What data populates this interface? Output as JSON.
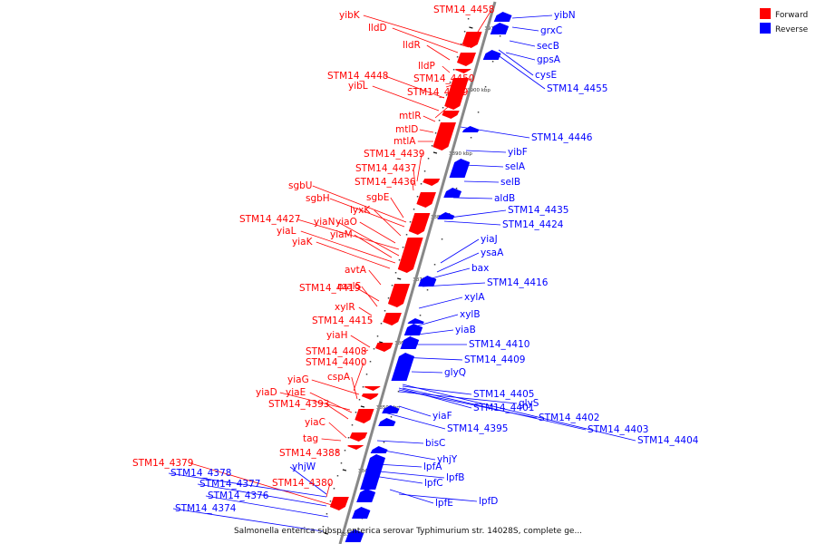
{
  "caption": "Salmonella enterica subsp. enterica serovar Typhimurium str. 14028S, complete ge...",
  "legend": [
    {
      "label": "Forward",
      "color": "#ff0000"
    },
    {
      "label": "Reverse",
      "color": "#0000ff"
    }
  ],
  "colors": {
    "forward": "#ff0000",
    "reverse": "#0000ff",
    "backbone": "#888888"
  },
  "ticks": [
    "3910 kbp",
    "3900 kbp",
    "3890 kbp",
    "3880 kbp",
    "3870 kbp",
    "3860 kbp",
    "3850 kbp",
    "3840 kbp",
    "3831 kbp"
  ],
  "forward_labels": [
    "yibK",
    "STM14_4458",
    "lldD",
    "lldR",
    "lldP",
    "STM14_4448",
    "STM14_4450",
    "yibL",
    "STM14_4449",
    "mtlR",
    "mtlD",
    "mtlA",
    "STM14_4439",
    "STM14_4437",
    "STM14_4436",
    "sgbU",
    "sgbH",
    "sgbE",
    "lyxK",
    "STM14_4427",
    "yiaN",
    "yiaO",
    "yiaL",
    "yiaM",
    "yiaK",
    "avtA",
    "STM14_4419",
    "malS",
    "xylR",
    "STM14_4415",
    "yiaH",
    "STM14_4408",
    "STM14_4400",
    "yiaG",
    "cspA",
    "yiaD",
    "yiaE",
    "STM14_4393",
    "yiaC",
    "tag",
    "STM14_4388",
    "STM14_4379",
    "STM14_4380"
  ],
  "reverse_labels": [
    "yibN",
    "grxC",
    "secB",
    "gpsA",
    "cysE",
    "STM14_4455",
    "STM14_4446",
    "yibF",
    "selA",
    "selB",
    "aldB",
    "STM14_4435",
    "STM14_4424",
    "yiaJ",
    "ysaA",
    "bax",
    "STM14_4416",
    "xylA",
    "xylB",
    "yiaB",
    "STM14_4410",
    "STM14_4409",
    "glyQ",
    "STM14_4405",
    "glyS",
    "STM14_4401",
    "STM14_4402",
    "STM14_4403",
    "STM14_4404",
    "yiaF",
    "STM14_4395",
    "bisC",
    "yhjY",
    "yhjW",
    "lpfA",
    "STM14_4378",
    "lpfB",
    "STM14_4377",
    "lpfC",
    "STM14_4376",
    "lpfE",
    "lpfD",
    "STM14_4374"
  ]
}
